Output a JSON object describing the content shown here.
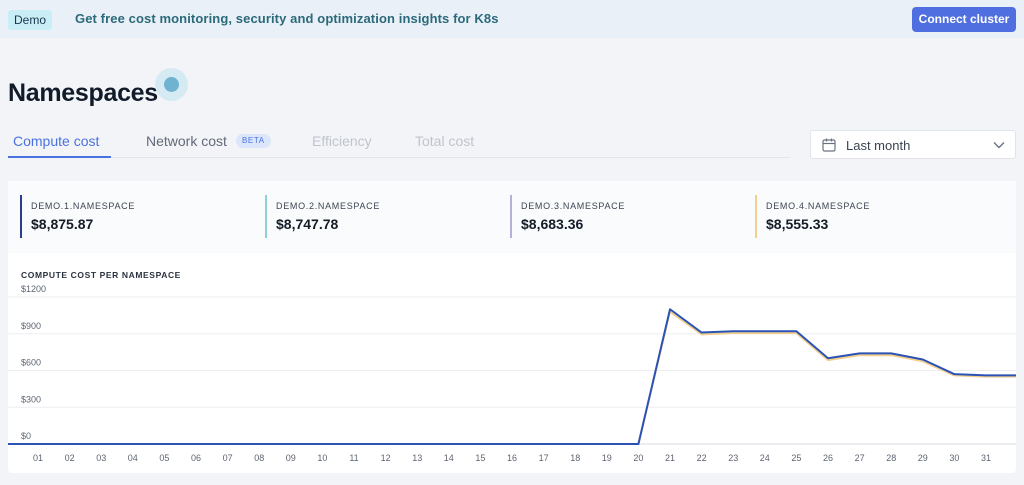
{
  "banner": {
    "badge": "Demo",
    "message": "Get free cost monitoring, security and optimization insights for K8s",
    "connect_label": "Connect cluster"
  },
  "page": {
    "title": "Namespaces"
  },
  "tabs": [
    {
      "label": "Compute cost",
      "active": true
    },
    {
      "label": "Network cost",
      "badge": "BETA"
    },
    {
      "label": "Efficiency"
    },
    {
      "label": "Total cost"
    }
  ],
  "date_filter": {
    "selected": "Last month",
    "icon": "calendar-icon",
    "chevron": "chevron-down-icon"
  },
  "namespaces": [
    {
      "name": "DEMO.1.NAMESPACE",
      "cost": "$8,875.87",
      "color": "#2b3d8f"
    },
    {
      "name": "DEMO.2.NAMESPACE",
      "cost": "$8,747.78",
      "color": "#8fd0d6"
    },
    {
      "name": "DEMO.3.NAMESPACE",
      "cost": "$8,683.36",
      "color": "#b7aedc"
    },
    {
      "name": "DEMO.4.NAMESPACE",
      "cost": "$8,555.33",
      "color": "#f3cf8e"
    }
  ],
  "chart_data": {
    "type": "line",
    "title": "COMPUTE COST PER NAMESPACE",
    "x": [
      "01",
      "02",
      "03",
      "04",
      "05",
      "06",
      "07",
      "08",
      "09",
      "10",
      "11",
      "12",
      "13",
      "14",
      "15",
      "16",
      "17",
      "18",
      "19",
      "20",
      "21",
      "22",
      "23",
      "24",
      "25",
      "26",
      "27",
      "28",
      "29",
      "30",
      "31"
    ],
    "ylim": [
      0,
      1200
    ],
    "yticks": [
      0,
      300,
      600,
      900,
      1200
    ],
    "ytick_labels": [
      "$0",
      "$300",
      "$600",
      "$900",
      "$1200"
    ],
    "grid": true,
    "series": [
      {
        "color": "#2b52b5",
        "values": [
          0,
          0,
          0,
          0,
          0,
          0,
          0,
          0,
          0,
          0,
          0,
          0,
          0,
          0,
          0,
          0,
          0,
          0,
          0,
          0,
          1100,
          910,
          920,
          920,
          920,
          700,
          740,
          740,
          690,
          570,
          560
        ]
      },
      {
        "color": "#f3cf8e",
        "values": [
          0,
          0,
          0,
          0,
          0,
          0,
          0,
          0,
          0,
          0,
          0,
          0,
          0,
          0,
          0,
          0,
          0,
          0,
          0,
          0,
          1080,
          895,
          905,
          905,
          905,
          685,
          725,
          725,
          675,
          560,
          550
        ]
      }
    ]
  }
}
